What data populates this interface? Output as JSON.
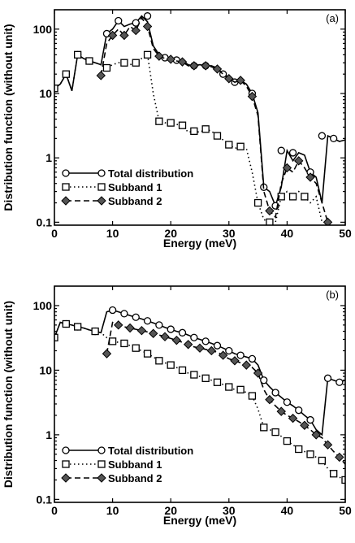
{
  "chart_data": [
    {
      "type": "line",
      "panel_label": "(a)",
      "xlabel": "Energy (meV)",
      "ylabel": "Distribution function (without unit)",
      "xlim": [
        0,
        50
      ],
      "ylim": [
        0.09,
        200
      ],
      "yscale": "log",
      "xticks": [
        0,
        10,
        20,
        30,
        40,
        50
      ],
      "yticks": [
        0.1,
        1,
        10,
        100
      ],
      "ytick_labels": [
        "0.1",
        "1",
        "10",
        "100"
      ],
      "legend_position": "lower-left",
      "series": [
        {
          "name": "Total distribution",
          "line_style": "solid",
          "marker": "circle",
          "x": [
            0,
            1,
            2,
            3,
            4,
            5,
            6,
            7,
            8,
            9,
            10,
            11,
            12,
            13,
            14,
            15,
            16,
            17,
            18,
            19,
            20,
            21,
            22,
            23,
            24,
            25,
            26,
            27,
            28,
            29,
            30,
            31,
            32,
            33,
            34,
            35,
            36,
            37,
            38,
            39,
            40,
            41,
            42,
            43,
            44,
            45,
            46,
            47,
            48,
            49,
            50
          ],
          "y": [
            12,
            14,
            20,
            11,
            40,
            35,
            32,
            30,
            28,
            85,
            100,
            135,
            110,
            120,
            125,
            160,
            130,
            55,
            40,
            36,
            34,
            33,
            32,
            28,
            27,
            28,
            27,
            27,
            25,
            20,
            18,
            15,
            16,
            14,
            10,
            5,
            0.35,
            0.3,
            0.18,
            0.35,
            1.3,
            0.9,
            1.2,
            1.1,
            0.6,
            0.5,
            0.2,
            2.2,
            2.0,
            1.8,
            1.9
          ],
          "marker_x": [
            0,
            2,
            4,
            6,
            9,
            11,
            14,
            16,
            19,
            21,
            24,
            26,
            29,
            31,
            34,
            36,
            38,
            39,
            41,
            44,
            46,
            48
          ],
          "marker_y": [
            12,
            20,
            40,
            32,
            85,
            135,
            125,
            160,
            36,
            33,
            27,
            27,
            20,
            15,
            10,
            0.35,
            0.18,
            1.3,
            1.2,
            0.6,
            2.2,
            2.0
          ]
        },
        {
          "name": "Subband 1",
          "line_style": "dotted",
          "marker": "square",
          "x": [
            0,
            1,
            2,
            3,
            4,
            5,
            6,
            7,
            8,
            9,
            10,
            11,
            12,
            13,
            14,
            15,
            16,
            17,
            18,
            19,
            20,
            21,
            22,
            23,
            24,
            25,
            26,
            27,
            28,
            29,
            30,
            31,
            32,
            33,
            34,
            35,
            36,
            37,
            38,
            39,
            40,
            41,
            42,
            43,
            44,
            45,
            46
          ],
          "y": [
            12,
            14,
            20,
            11,
            40,
            35,
            32,
            30,
            28,
            25,
            28,
            30,
            30,
            28,
            30,
            35,
            40,
            10,
            3.7,
            3.5,
            3.5,
            3.3,
            3.2,
            2.5,
            2.6,
            2.5,
            2.8,
            2.6,
            2.2,
            1.9,
            1.6,
            1.4,
            1.5,
            1.4,
            0.6,
            0.2,
            0.11,
            0.1,
            0.1,
            0.25,
            0.3,
            0.25,
            0.3,
            0.25,
            0.2,
            0.25,
            0.1
          ],
          "marker_x": [
            0,
            2,
            4,
            6,
            9,
            12,
            14,
            16,
            18,
            20,
            22,
            24,
            26,
            28,
            30,
            32,
            35,
            37,
            39,
            41,
            43
          ],
          "marker_y": [
            12,
            20,
            40,
            32,
            25,
            30,
            30,
            40,
            3.7,
            3.5,
            3.2,
            2.6,
            2.8,
            2.2,
            1.6,
            1.5,
            0.2,
            0.1,
            0.25,
            0.25,
            0.25
          ]
        },
        {
          "name": "Subband 2",
          "line_style": "dashed",
          "marker": "diamond",
          "x": [
            8,
            9,
            10,
            11,
            12,
            13,
            14,
            15,
            16,
            17,
            18,
            19,
            20,
            21,
            22,
            23,
            24,
            25,
            26,
            27,
            28,
            29,
            30,
            31,
            32,
            33,
            34,
            35,
            36,
            37,
            38,
            39,
            40,
            41,
            42,
            43,
            44,
            45,
            46,
            47
          ],
          "y": [
            19,
            60,
            80,
            100,
            80,
            110,
            95,
            150,
            110,
            50,
            38,
            35,
            34,
            32,
            31,
            27,
            27,
            28,
            27,
            26,
            24,
            20,
            17,
            15,
            16,
            13,
            9,
            4.5,
            0.3,
            0.15,
            0.12,
            0.4,
            0.7,
            0.6,
            0.9,
            0.7,
            0.5,
            0.4,
            0.2,
            0.1
          ],
          "marker_x": [
            8,
            10,
            12,
            14,
            16,
            18,
            20,
            22,
            24,
            26,
            28,
            30,
            32,
            34,
            37,
            40,
            42,
            44,
            47
          ],
          "marker_y": [
            19,
            80,
            80,
            95,
            110,
            38,
            34,
            31,
            27,
            27,
            24,
            17,
            16,
            9,
            0.15,
            0.7,
            0.9,
            0.5,
            0.1
          ]
        }
      ]
    },
    {
      "type": "line",
      "panel_label": "(b)",
      "xlabel": "Energy (meV)",
      "ylabel": "Distribution function (without unit)",
      "xlim": [
        0,
        50
      ],
      "ylim": [
        0.09,
        200
      ],
      "yscale": "log",
      "xticks": [
        0,
        10,
        20,
        30,
        40,
        50
      ],
      "yticks": [
        0.1,
        1,
        10,
        100
      ],
      "ytick_labels": [
        "0.1",
        "1",
        "10",
        "100"
      ],
      "legend_position": "lower-left",
      "series": [
        {
          "name": "Total distribution",
          "line_style": "solid",
          "marker": "circle",
          "x": [
            0,
            1,
            2,
            3,
            4,
            5,
            6,
            7,
            8,
            9,
            10,
            11,
            12,
            13,
            14,
            15,
            16,
            17,
            18,
            19,
            20,
            21,
            22,
            23,
            24,
            25,
            26,
            27,
            28,
            29,
            30,
            31,
            32,
            33,
            34,
            35,
            36,
            37,
            38,
            39,
            40,
            41,
            42,
            43,
            44,
            45,
            46,
            47,
            48,
            49,
            50
          ],
          "y": [
            32,
            55,
            52,
            50,
            47,
            45,
            42,
            40,
            38,
            80,
            85,
            80,
            75,
            70,
            66,
            62,
            58,
            54,
            50,
            46,
            43,
            40,
            38,
            35,
            32,
            30,
            28,
            26,
            24,
            22,
            20,
            18,
            17,
            16,
            15,
            12,
            7,
            5.5,
            4.5,
            3.8,
            3.2,
            2.8,
            2.4,
            2.0,
            1.7,
            1.2,
            1.0,
            7.5,
            7.0,
            6.5,
            7.0
          ],
          "marker_x": [
            0,
            2,
            4,
            7,
            10,
            12,
            14,
            16,
            18,
            20,
            22,
            24,
            26,
            28,
            30,
            32,
            34,
            36,
            38,
            40,
            42,
            44,
            47,
            49
          ],
          "marker_y": [
            32,
            52,
            47,
            40,
            85,
            75,
            66,
            58,
            50,
            43,
            38,
            32,
            28,
            24,
            20,
            17,
            15,
            7,
            4.5,
            3.2,
            2.4,
            1.7,
            7.5,
            6.5
          ]
        },
        {
          "name": "Subband 1",
          "line_style": "dotted",
          "marker": "square",
          "x": [
            0,
            1,
            2,
            3,
            4,
            5,
            6,
            7,
            8,
            9,
            10,
            11,
            12,
            13,
            14,
            15,
            16,
            17,
            18,
            19,
            20,
            21,
            22,
            23,
            24,
            25,
            26,
            27,
            28,
            29,
            30,
            31,
            32,
            33,
            34,
            35,
            36,
            37,
            38,
            39,
            40,
            41,
            42,
            43,
            44,
            45,
            46,
            47,
            48,
            49,
            50
          ],
          "y": [
            32,
            55,
            52,
            50,
            47,
            45,
            42,
            40,
            38,
            32,
            28,
            27,
            26,
            24,
            22,
            20,
            18,
            16,
            14,
            13,
            12,
            11,
            10,
            9,
            8.5,
            8,
            7.5,
            7,
            6.5,
            6,
            5.5,
            5,
            5,
            4.5,
            4,
            2.5,
            1.3,
            1.2,
            1.1,
            0.95,
            0.8,
            0.7,
            0.6,
            0.55,
            0.5,
            0.45,
            0.4,
            0.3,
            0.25,
            0.22,
            0.2
          ],
          "marker_x": [
            0,
            2,
            4,
            7,
            10,
            12,
            14,
            16,
            18,
            20,
            22,
            24,
            26,
            28,
            30,
            32,
            34,
            36,
            38,
            40,
            42,
            44,
            46,
            48,
            50
          ],
          "marker_y": [
            32,
            52,
            47,
            40,
            28,
            26,
            22,
            18,
            14,
            12,
            10,
            8.5,
            7.5,
            6.5,
            5.5,
            5,
            4,
            1.3,
            1.1,
            0.8,
            0.6,
            0.5,
            0.4,
            0.25,
            0.2
          ]
        },
        {
          "name": "Subband 2",
          "line_style": "dashed",
          "marker": "diamond",
          "x": [
            9,
            10,
            11,
            12,
            13,
            14,
            15,
            16,
            17,
            18,
            19,
            20,
            21,
            22,
            23,
            24,
            25,
            26,
            27,
            28,
            29,
            30,
            31,
            32,
            33,
            34,
            35,
            36,
            37,
            38,
            39,
            40,
            41,
            42,
            43,
            44,
            45,
            46,
            47,
            48,
            49,
            50
          ],
          "y": [
            18,
            55,
            50,
            47,
            45,
            43,
            41,
            39,
            37,
            35,
            33,
            31,
            29,
            27,
            25,
            23,
            22,
            21,
            20,
            19,
            17,
            15,
            14,
            13,
            12,
            11,
            9,
            5,
            3.5,
            2.8,
            2.3,
            2.0,
            1.8,
            1.6,
            1.4,
            1.2,
            1.0,
            0.9,
            0.7,
            0.55,
            0.45,
            0.35
          ],
          "marker_x": [
            9,
            11,
            13,
            15,
            17,
            19,
            21,
            23,
            25,
            27,
            29,
            31,
            33,
            35,
            37,
            39,
            41,
            43,
            45,
            47,
            49
          ],
          "marker_y": [
            18,
            50,
            45,
            41,
            37,
            33,
            29,
            25,
            22,
            20,
            17,
            14,
            12,
            9,
            3.5,
            2.3,
            1.8,
            1.4,
            1.0,
            0.7,
            0.45
          ]
        }
      ]
    }
  ]
}
